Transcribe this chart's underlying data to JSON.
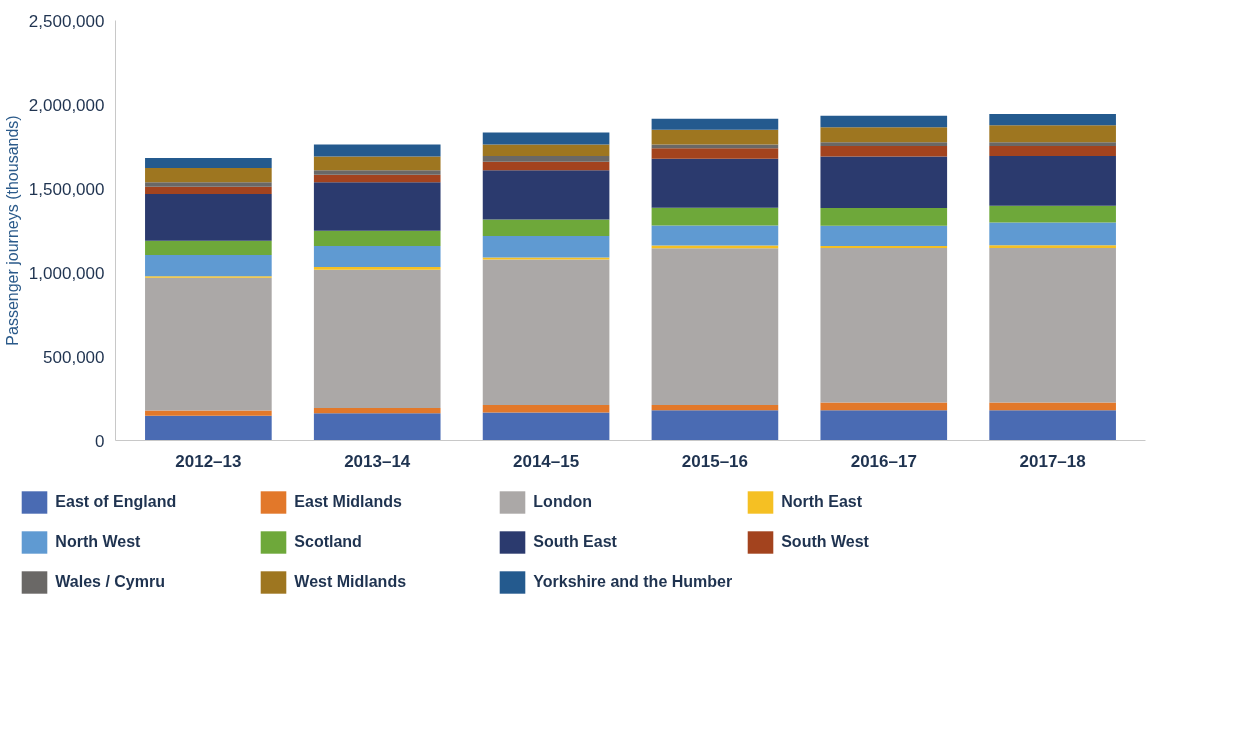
{
  "chart_data": {
    "type": "bar",
    "stacked": true,
    "ylabel": "Passenger journeys (thousands)",
    "categories": [
      "2012–13",
      "2013–14",
      "2014–15",
      "2015–16",
      "2016–17",
      "2017–18"
    ],
    "ylim": [
      0,
      2500000
    ],
    "yticks": [
      0,
      {
        "value": 500000,
        "label": "500,000"
      },
      {
        "value": 1000000,
        "label": "1,000,000"
      },
      {
        "value": 1500000,
        "label": "1,500,000"
      },
      {
        "value": 2000000,
        "label": "2,000,000"
      },
      {
        "value": 2500000,
        "label": "2,500,000"
      }
    ],
    "grid": false,
    "legend": "bottom",
    "series": [
      {
        "name": "East of England",
        "color": "#4a6bb3",
        "values": [
          148000,
          162000,
          166000,
          180000,
          180000,
          180000
        ]
      },
      {
        "name": "East Midlands",
        "color": "#e2782a",
        "values": [
          31000,
          31000,
          45000,
          31000,
          46000,
          46000
        ]
      },
      {
        "name": "London",
        "color": "#aba8a7",
        "values": [
          790000,
          824000,
          866000,
          934000,
          920000,
          920000
        ]
      },
      {
        "name": "North East",
        "color": "#f5c023",
        "values": [
          9000,
          15000,
          12000,
          16000,
          12000,
          16000
        ]
      },
      {
        "name": "North West",
        "color": "#5f9ad2",
        "values": [
          126000,
          126000,
          128000,
          119000,
          121000,
          135000
        ]
      },
      {
        "name": "Scotland",
        "color": "#6ea83a",
        "values": [
          85000,
          90000,
          98000,
          106000,
          105000,
          101000
        ]
      },
      {
        "name": "South East",
        "color": "#2b3a6e",
        "values": [
          279000,
          289000,
          294000,
          291000,
          306000,
          296000
        ]
      },
      {
        "name": "South West",
        "color": "#a3431e",
        "values": [
          42000,
          45000,
          50000,
          63000,
          63000,
          59000
        ]
      },
      {
        "name": "Wales / Cymru",
        "color": "#6a6866",
        "values": [
          27000,
          27000,
          35000,
          22000,
          23000,
          23000
        ]
      },
      {
        "name": "West Midlands",
        "color": "#9e7620",
        "values": [
          85000,
          81000,
          68000,
          87000,
          89000,
          100000
        ]
      },
      {
        "name": "Yorkshire and the Humber",
        "color": "#245a8e",
        "values": [
          59000,
          72000,
          72000,
          66000,
          68000,
          67000
        ]
      }
    ]
  }
}
